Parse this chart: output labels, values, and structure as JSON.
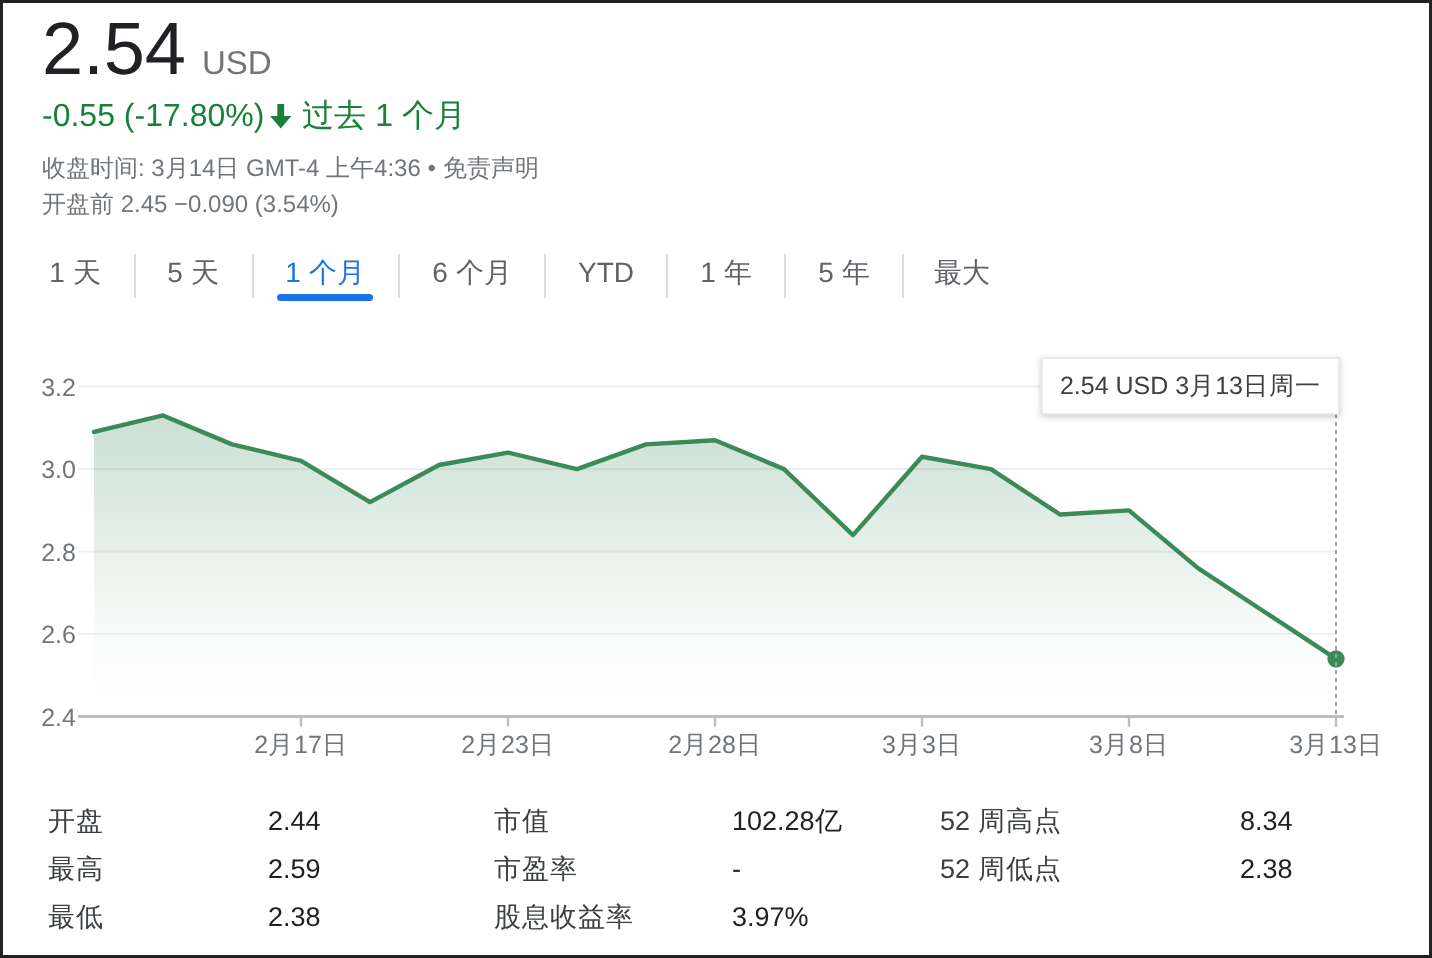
{
  "chart_data": {
    "type": "area",
    "title": "2.54 USD",
    "subtitle": "-0.55 (-17.80%)",
    "categories": [
      null,
      null,
      null,
      "2月17日",
      null,
      null,
      "2月23日",
      null,
      null,
      "2月28日",
      null,
      null,
      "3月3日",
      null,
      null,
      "3月8日",
      null,
      null,
      "3月13日"
    ],
    "series": [
      {
        "color": "#3b8a57",
        "values": [
          3.09,
          3.13,
          3.06,
          3.02,
          2.92,
          3.01,
          3.04,
          3.0,
          3.06,
          3.07,
          3.0,
          2.84,
          3.03,
          3.0,
          2.89,
          2.9,
          2.76,
          2.65,
          2.54
        ]
      },
      {
        "type": "scatter",
        "color": "#3b8a57",
        "x": [
          "3月13日"
        ],
        "values": [
          2.54
        ]
      }
    ],
    "ylim": [
      2.4,
      3.2
    ],
    "yticks": [
      2.4,
      2.6,
      2.8,
      {
        "value": 3,
        "label": "3.0"
      },
      3.2
    ],
    "grid": "y",
    "ref_lines": [
      {
        "axis": "x",
        "value": "3月13日",
        "color": "#9aa0a6",
        "line_style": "dotted"
      }
    ],
    "annotations": [
      "收盘时间: 3月14日 GMT-4 上午4:36 • 免责声明",
      "开盘前 2.45 −0.090 (3.54%)",
      "过去 1 个月",
      "1 天",
      "5 天",
      "1 个月",
      "6 个月",
      "YTD",
      "1 年",
      "5 年",
      "最大",
      "开盘",
      "2.44",
      "最高",
      "2.59",
      "最低",
      "2.38",
      "市值",
      "102.28亿",
      "市盈率",
      "-",
      "股息收益率",
      "3.97%",
      "52 周高点",
      "8.34",
      "52 周低点",
      "2.38",
      "2.54 USD 3月13日周一"
    ]
  }
}
